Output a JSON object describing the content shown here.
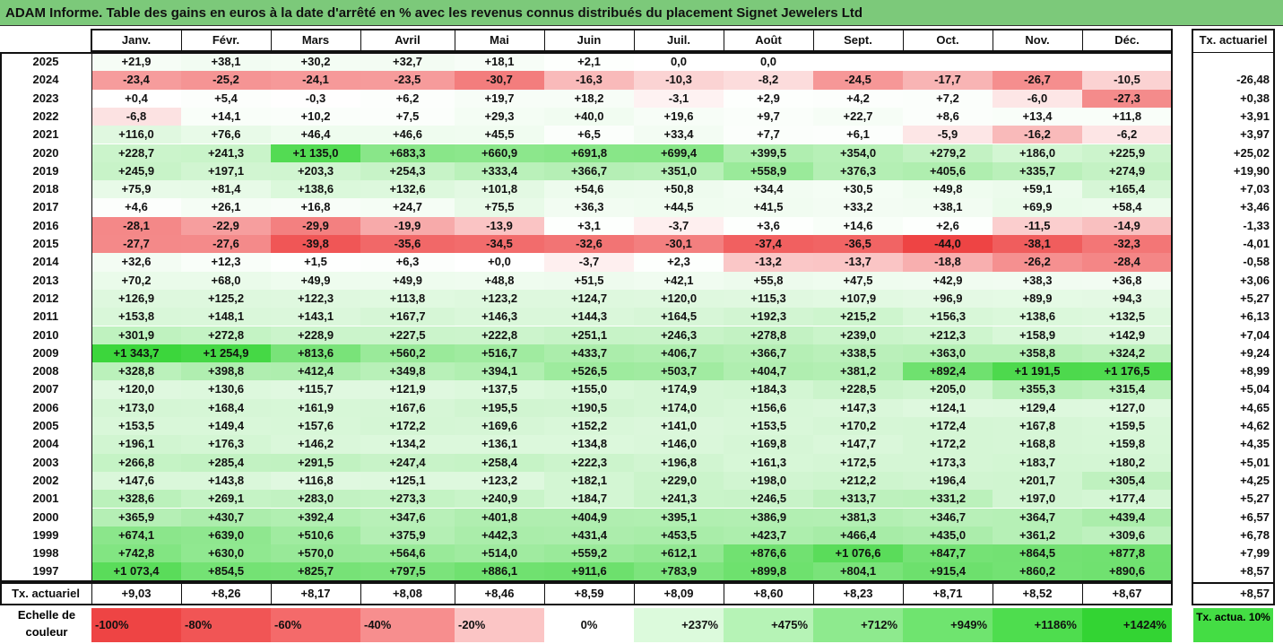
{
  "title": "ADAM Informe. Table des gains en euros à la date d'arrêté en % avec les revenus connus distribués du placement Signet Jewelers Ltd",
  "months": [
    "Janv.",
    "Févr.",
    "Mars",
    "Avril",
    "Mai",
    "Juin",
    "Juil.",
    "Août",
    "Sept.",
    "Oct.",
    "Nov.",
    "Déc."
  ],
  "tx_header": "Tx. actuariel",
  "rows": [
    {
      "year": "2025",
      "values": [
        "+21,9",
        "+38,1",
        "+30,2",
        "+32,7",
        "+18,1",
        "+2,1",
        "0,0",
        "0,0",
        "",
        "",
        "",
        ""
      ],
      "tx": ""
    },
    {
      "year": "2024",
      "values": [
        "-23,4",
        "-25,2",
        "-24,1",
        "-23,5",
        "-30,7",
        "-16,3",
        "-10,3",
        "-8,2",
        "-24,5",
        "-17,7",
        "-26,7",
        "-10,5"
      ],
      "tx": "-26,48"
    },
    {
      "year": "2023",
      "values": [
        "+0,4",
        "+5,4",
        "-0,3",
        "+6,2",
        "+19,7",
        "+18,2",
        "-3,1",
        "+2,9",
        "+4,2",
        "+7,2",
        "-6,0",
        "-27,3"
      ],
      "tx": "+0,38"
    },
    {
      "year": "2022",
      "values": [
        "-6,8",
        "+14,1",
        "+10,2",
        "+7,5",
        "+29,3",
        "+40,0",
        "+19,6",
        "+9,7",
        "+22,7",
        "+8,6",
        "+13,4",
        "+11,8"
      ],
      "tx": "+3,91"
    },
    {
      "year": "2021",
      "values": [
        "+116,0",
        "+76,6",
        "+46,4",
        "+46,6",
        "+45,5",
        "+6,5",
        "+33,4",
        "+7,7",
        "+6,1",
        "-5,9",
        "-16,2",
        "-6,2"
      ],
      "tx": "+3,97"
    },
    {
      "year": "2020",
      "values": [
        "+228,7",
        "+241,3",
        "+1 135,0",
        "+683,3",
        "+660,9",
        "+691,8",
        "+699,4",
        "+399,5",
        "+354,0",
        "+279,2",
        "+186,0",
        "+225,9"
      ],
      "tx": "+25,02"
    },
    {
      "year": "2019",
      "values": [
        "+245,9",
        "+197,1",
        "+203,3",
        "+254,3",
        "+333,4",
        "+366,7",
        "+351,0",
        "+558,9",
        "+376,3",
        "+405,6",
        "+335,7",
        "+274,9"
      ],
      "tx": "+19,90"
    },
    {
      "year": "2018",
      "values": [
        "+75,9",
        "+81,4",
        "+138,6",
        "+132,6",
        "+101,8",
        "+54,6",
        "+50,8",
        "+34,4",
        "+30,5",
        "+49,8",
        "+59,1",
        "+165,4"
      ],
      "tx": "+7,03"
    },
    {
      "year": "2017",
      "values": [
        "+4,6",
        "+26,1",
        "+16,8",
        "+24,7",
        "+75,5",
        "+36,3",
        "+44,5",
        "+41,5",
        "+33,2",
        "+38,1",
        "+69,9",
        "+58,4"
      ],
      "tx": "+3,46"
    },
    {
      "year": "2016",
      "values": [
        "-28,1",
        "-22,9",
        "-29,9",
        "-19,9",
        "-13,9",
        "+3,1",
        "-3,7",
        "+3,6",
        "+14,6",
        "+2,6",
        "-11,5",
        "-14,9"
      ],
      "tx": "-1,33"
    },
    {
      "year": "2015",
      "values": [
        "-27,7",
        "-27,6",
        "-39,8",
        "-35,6",
        "-34,5",
        "-32,6",
        "-30,1",
        "-37,4",
        "-36,5",
        "-44,0",
        "-38,1",
        "-32,3"
      ],
      "tx": "-4,01"
    },
    {
      "year": "2014",
      "values": [
        "+32,6",
        "+12,3",
        "+1,5",
        "+6,3",
        "+0,0",
        "-3,7",
        "+2,3",
        "-13,2",
        "-13,7",
        "-18,8",
        "-26,2",
        "-28,4"
      ],
      "tx": "-0,58"
    },
    {
      "year": "2013",
      "values": [
        "+70,2",
        "+68,0",
        "+49,9",
        "+49,9",
        "+48,8",
        "+51,5",
        "+42,1",
        "+55,8",
        "+47,5",
        "+42,9",
        "+38,3",
        "+36,8"
      ],
      "tx": "+3,06"
    },
    {
      "year": "2012",
      "values": [
        "+126,9",
        "+125,2",
        "+122,3",
        "+113,8",
        "+123,2",
        "+124,7",
        "+120,0",
        "+115,3",
        "+107,9",
        "+96,9",
        "+89,9",
        "+94,3"
      ],
      "tx": "+5,27"
    },
    {
      "year": "2011",
      "values": [
        "+153,8",
        "+148,1",
        "+143,1",
        "+167,7",
        "+146,3",
        "+144,3",
        "+164,5",
        "+192,3",
        "+215,2",
        "+156,3",
        "+138,6",
        "+132,5"
      ],
      "tx": "+6,13"
    },
    {
      "year": "2010",
      "values": [
        "+301,9",
        "+272,8",
        "+228,9",
        "+227,5",
        "+222,8",
        "+251,1",
        "+246,3",
        "+278,8",
        "+239,0",
        "+212,3",
        "+158,9",
        "+142,9"
      ],
      "tx": "+7,04"
    },
    {
      "year": "2009",
      "values": [
        "+1 343,7",
        "+1 254,9",
        "+813,6",
        "+560,2",
        "+516,7",
        "+433,7",
        "+406,7",
        "+366,7",
        "+338,5",
        "+363,0",
        "+358,8",
        "+324,2"
      ],
      "tx": "+9,24"
    },
    {
      "year": "2008",
      "values": [
        "+328,8",
        "+398,8",
        "+412,4",
        "+349,8",
        "+394,1",
        "+526,5",
        "+503,7",
        "+404,7",
        "+381,2",
        "+892,4",
        "+1 191,5",
        "+1 176,5"
      ],
      "tx": "+8,99"
    },
    {
      "year": "2007",
      "values": [
        "+120,0",
        "+130,6",
        "+115,7",
        "+121,9",
        "+137,5",
        "+155,0",
        "+174,9",
        "+184,3",
        "+228,5",
        "+205,0",
        "+355,3",
        "+315,4"
      ],
      "tx": "+5,04"
    },
    {
      "year": "2006",
      "values": [
        "+173,0",
        "+168,4",
        "+161,9",
        "+167,6",
        "+195,5",
        "+190,5",
        "+174,0",
        "+156,6",
        "+147,3",
        "+124,1",
        "+129,4",
        "+127,0"
      ],
      "tx": "+4,65"
    },
    {
      "year": "2005",
      "values": [
        "+153,5",
        "+149,4",
        "+157,6",
        "+172,2",
        "+169,6",
        "+152,2",
        "+141,0",
        "+153,5",
        "+170,2",
        "+172,4",
        "+167,8",
        "+159,5"
      ],
      "tx": "+4,62"
    },
    {
      "year": "2004",
      "values": [
        "+196,1",
        "+176,3",
        "+146,2",
        "+134,2",
        "+136,1",
        "+134,8",
        "+146,0",
        "+169,8",
        "+147,7",
        "+172,2",
        "+168,8",
        "+159,8"
      ],
      "tx": "+4,35"
    },
    {
      "year": "2003",
      "values": [
        "+266,8",
        "+285,4",
        "+291,5",
        "+247,4",
        "+258,4",
        "+222,3",
        "+196,8",
        "+161,3",
        "+172,5",
        "+173,3",
        "+183,7",
        "+180,2"
      ],
      "tx": "+5,01"
    },
    {
      "year": "2002",
      "values": [
        "+147,6",
        "+143,8",
        "+116,8",
        "+125,1",
        "+123,2",
        "+182,1",
        "+229,0",
        "+198,0",
        "+212,2",
        "+196,4",
        "+201,7",
        "+305,4"
      ],
      "tx": "+4,25"
    },
    {
      "year": "2001",
      "values": [
        "+328,6",
        "+269,1",
        "+283,0",
        "+273,3",
        "+240,9",
        "+184,7",
        "+241,3",
        "+246,5",
        "+313,7",
        "+331,2",
        "+197,0",
        "+177,4"
      ],
      "tx": "+5,27"
    },
    {
      "year": "2000",
      "values": [
        "+365,9",
        "+430,7",
        "+392,4",
        "+347,6",
        "+401,8",
        "+404,9",
        "+395,1",
        "+386,9",
        "+381,3",
        "+346,7",
        "+364,7",
        "+439,4"
      ],
      "tx": "+6,57"
    },
    {
      "year": "1999",
      "values": [
        "+674,1",
        "+639,0",
        "+510,6",
        "+375,9",
        "+442,3",
        "+431,4",
        "+453,5",
        "+423,7",
        "+466,4",
        "+435,0",
        "+361,2",
        "+309,6"
      ],
      "tx": "+6,78"
    },
    {
      "year": "1998",
      "values": [
        "+742,8",
        "+630,0",
        "+570,0",
        "+564,6",
        "+514,0",
        "+559,2",
        "+612,1",
        "+876,6",
        "+1 076,6",
        "+847,7",
        "+864,5",
        "+877,8"
      ],
      "tx": "+7,99"
    },
    {
      "year": "1997",
      "values": [
        "+1 073,4",
        "+854,5",
        "+825,7",
        "+797,5",
        "+886,1",
        "+911,6",
        "+783,9",
        "+899,8",
        "+804,1",
        "+915,4",
        "+860,2",
        "+890,6"
      ],
      "tx": "+8,57"
    }
  ],
  "footer": {
    "label": "Tx. actuariel",
    "values": [
      "+9,03",
      "+8,26",
      "+8,17",
      "+8,08",
      "+8,46",
      "+8,59",
      "+8,09",
      "+8,60",
      "+8,23",
      "+8,71",
      "+8,52",
      "+8,67"
    ],
    "tx": "+8,57"
  },
  "legend": {
    "label": "Echelle de couleur",
    "steps": [
      {
        "label": "-100%",
        "color": "#ee4444",
        "align": "left"
      },
      {
        "label": "-80%",
        "color": "#f15555",
        "align": "left"
      },
      {
        "label": "-60%",
        "color": "#f46a6a",
        "align": "left"
      },
      {
        "label": "-40%",
        "color": "#f78e8e",
        "align": "left"
      },
      {
        "label": "-20%",
        "color": "#fbc5c5",
        "align": "left"
      },
      {
        "label": "0%",
        "color": "#ffffff",
        "align": "center"
      },
      {
        "label": "+237%",
        "color": "#dcfadc",
        "align": "right"
      },
      {
        "label": "+475%",
        "color": "#b6f3b6",
        "align": "right"
      },
      {
        "label": "+712%",
        "color": "#8eea8e",
        "align": "right"
      },
      {
        "label": "+949%",
        "color": "#6fe46f",
        "align": "right"
      },
      {
        "label": "+1186%",
        "color": "#4edd4e",
        "align": "right"
      },
      {
        "label": "+1424%",
        "color": "#33d433",
        "align": "right"
      }
    ],
    "tx_label": "Tx. actua. 10%",
    "tx_color": "#44dd44"
  },
  "colors": {
    "title_bg": "#7cc97a",
    "max_green": "#33d433",
    "max_red": "#ee4444"
  }
}
